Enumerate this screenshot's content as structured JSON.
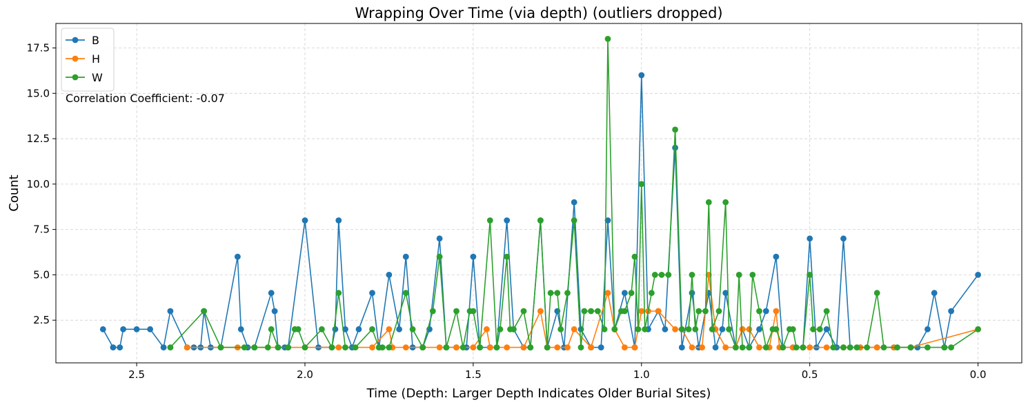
{
  "chart_data": {
    "type": "line",
    "title": "Wrapping Over Time (via depth) (outliers dropped)",
    "xlabel": "Time (Depth: Larger Depth Indicates Older Burial Sites)",
    "ylabel": "Count",
    "xlim": [
      2.74,
      -0.13
    ],
    "ylim": [
      0.15,
      18.85
    ],
    "x_inverted": true,
    "grid": true,
    "legend_position": "top-left",
    "annotation": "Correlation Coefficient: -0.07",
    "xticks": [
      2.5,
      2.0,
      1.5,
      1.0,
      0.5,
      0.0
    ],
    "xtick_labels": [
      "2.5",
      "2.0",
      "1.5",
      "1.0",
      "0.5",
      "0.0"
    ],
    "yticks": [
      2.5,
      5.0,
      7.5,
      10.0,
      12.5,
      15.0,
      17.5
    ],
    "ytick_labels": [
      "2.5",
      "5.0",
      "7.5",
      "10.0",
      "12.5",
      "15.0",
      "17.5"
    ],
    "series": [
      {
        "name": "B",
        "color": "#1f77b4",
        "points": [
          [
            2.6,
            2
          ],
          [
            2.57,
            1
          ],
          [
            2.55,
            1
          ],
          [
            2.54,
            2
          ],
          [
            2.5,
            2
          ],
          [
            2.46,
            2
          ],
          [
            2.42,
            1
          ],
          [
            2.4,
            3
          ],
          [
            2.35,
            1
          ],
          [
            2.33,
            1
          ],
          [
            2.31,
            1
          ],
          [
            2.3,
            3
          ],
          [
            2.28,
            1
          ],
          [
            2.25,
            1
          ],
          [
            2.2,
            6
          ],
          [
            2.19,
            2
          ],
          [
            2.17,
            1
          ],
          [
            2.15,
            1
          ],
          [
            2.1,
            4
          ],
          [
            2.09,
            3
          ],
          [
            2.08,
            1
          ],
          [
            2.06,
            1
          ],
          [
            2.05,
            1
          ],
          [
            2.0,
            8
          ],
          [
            1.96,
            1
          ],
          [
            1.92,
            1
          ],
          [
            1.91,
            2
          ],
          [
            1.9,
            8
          ],
          [
            1.88,
            2
          ],
          [
            1.86,
            1
          ],
          [
            1.84,
            2
          ],
          [
            1.8,
            4
          ],
          [
            1.78,
            1
          ],
          [
            1.75,
            5
          ],
          [
            1.72,
            2
          ],
          [
            1.7,
            6
          ],
          [
            1.68,
            1
          ],
          [
            1.65,
            1
          ],
          [
            1.63,
            2
          ],
          [
            1.6,
            7
          ],
          [
            1.58,
            1
          ],
          [
            1.55,
            1
          ],
          [
            1.52,
            1
          ],
          [
            1.5,
            6
          ],
          [
            1.48,
            1
          ],
          [
            1.45,
            1
          ],
          [
            1.43,
            1
          ],
          [
            1.4,
            8
          ],
          [
            1.38,
            2
          ],
          [
            1.35,
            1
          ],
          [
            1.33,
            1
          ],
          [
            1.3,
            8
          ],
          [
            1.28,
            1
          ],
          [
            1.25,
            3
          ],
          [
            1.23,
            1
          ],
          [
            1.2,
            9
          ],
          [
            1.18,
            2
          ],
          [
            1.15,
            1
          ],
          [
            1.12,
            1
          ],
          [
            1.1,
            8
          ],
          [
            1.08,
            2
          ],
          [
            1.05,
            4
          ],
          [
            1.02,
            1
          ],
          [
            1.0,
            16
          ],
          [
            0.98,
            2
          ],
          [
            0.95,
            3
          ],
          [
            0.93,
            2
          ],
          [
            0.9,
            12
          ],
          [
            0.88,
            1
          ],
          [
            0.85,
            4
          ],
          [
            0.83,
            1
          ],
          [
            0.8,
            4
          ],
          [
            0.78,
            1
          ],
          [
            0.76,
            2
          ],
          [
            0.75,
            4
          ],
          [
            0.72,
            1
          ],
          [
            0.7,
            2
          ],
          [
            0.68,
            1
          ],
          [
            0.65,
            2
          ],
          [
            0.63,
            3
          ],
          [
            0.6,
            6
          ],
          [
            0.58,
            1
          ],
          [
            0.55,
            1
          ],
          [
            0.52,
            1
          ],
          [
            0.5,
            7
          ],
          [
            0.48,
            1
          ],
          [
            0.45,
            2
          ],
          [
            0.42,
            1
          ],
          [
            0.4,
            7
          ],
          [
            0.38,
            1
          ],
          [
            0.35,
            1
          ],
          [
            0.3,
            1
          ],
          [
            0.25,
            1
          ],
          [
            0.2,
            1
          ],
          [
            0.18,
            1
          ],
          [
            0.15,
            2
          ],
          [
            0.13,
            4
          ],
          [
            0.1,
            1
          ],
          [
            0.08,
            3
          ],
          [
            0.0,
            5
          ]
        ]
      },
      {
        "name": "H",
        "color": "#ff7f0e",
        "points": [
          [
            2.35,
            1
          ],
          [
            2.2,
            1
          ],
          [
            2.0,
            1
          ],
          [
            1.9,
            1
          ],
          [
            1.8,
            1
          ],
          [
            1.75,
            2
          ],
          [
            1.74,
            1
          ],
          [
            1.7,
            1
          ],
          [
            1.65,
            1
          ],
          [
            1.6,
            1
          ],
          [
            1.55,
            1
          ],
          [
            1.5,
            1
          ],
          [
            1.46,
            2
          ],
          [
            1.45,
            1
          ],
          [
            1.4,
            1
          ],
          [
            1.35,
            1
          ],
          [
            1.3,
            3
          ],
          [
            1.28,
            1
          ],
          [
            1.25,
            1
          ],
          [
            1.22,
            1
          ],
          [
            1.2,
            2
          ],
          [
            1.15,
            1
          ],
          [
            1.1,
            4
          ],
          [
            1.08,
            2
          ],
          [
            1.05,
            1
          ],
          [
            1.02,
            1
          ],
          [
            1.0,
            3
          ],
          [
            0.98,
            3
          ],
          [
            0.95,
            3
          ],
          [
            0.9,
            2
          ],
          [
            0.88,
            2
          ],
          [
            0.85,
            1
          ],
          [
            0.82,
            1
          ],
          [
            0.8,
            5
          ],
          [
            0.78,
            2
          ],
          [
            0.75,
            1
          ],
          [
            0.72,
            1
          ],
          [
            0.7,
            2
          ],
          [
            0.68,
            2
          ],
          [
            0.65,
            1
          ],
          [
            0.62,
            1
          ],
          [
            0.6,
            3
          ],
          [
            0.59,
            1
          ],
          [
            0.55,
            1
          ],
          [
            0.52,
            1
          ],
          [
            0.5,
            1
          ],
          [
            0.45,
            1
          ],
          [
            0.4,
            1
          ],
          [
            0.35,
            1
          ],
          [
            0.3,
            1
          ],
          [
            0.25,
            1
          ],
          [
            0.2,
            1
          ],
          [
            0.0,
            2
          ]
        ]
      },
      {
        "name": "W",
        "color": "#2ca02c",
        "points": [
          [
            2.4,
            1
          ],
          [
            2.3,
            3
          ],
          [
            2.25,
            1
          ],
          [
            2.18,
            1
          ],
          [
            2.15,
            1
          ],
          [
            2.11,
            1
          ],
          [
            2.1,
            2
          ],
          [
            2.08,
            1
          ],
          [
            2.05,
            1
          ],
          [
            2.03,
            2
          ],
          [
            2.02,
            2
          ],
          [
            2.0,
            1
          ],
          [
            1.95,
            2
          ],
          [
            1.92,
            1
          ],
          [
            1.9,
            4
          ],
          [
            1.88,
            1
          ],
          [
            1.85,
            1
          ],
          [
            1.8,
            2
          ],
          [
            1.78,
            1
          ],
          [
            1.77,
            1
          ],
          [
            1.75,
            1
          ],
          [
            1.7,
            4
          ],
          [
            1.68,
            2
          ],
          [
            1.65,
            1
          ],
          [
            1.62,
            3
          ],
          [
            1.6,
            6
          ],
          [
            1.58,
            1
          ],
          [
            1.55,
            3
          ],
          [
            1.53,
            1
          ],
          [
            1.51,
            3
          ],
          [
            1.5,
            3
          ],
          [
            1.48,
            1
          ],
          [
            1.45,
            8
          ],
          [
            1.43,
            1
          ],
          [
            1.42,
            2
          ],
          [
            1.4,
            6
          ],
          [
            1.39,
            2
          ],
          [
            1.38,
            2
          ],
          [
            1.35,
            3
          ],
          [
            1.33,
            1
          ],
          [
            1.3,
            8
          ],
          [
            1.28,
            1
          ],
          [
            1.27,
            4
          ],
          [
            1.25,
            4
          ],
          [
            1.24,
            2
          ],
          [
            1.22,
            4
          ],
          [
            1.2,
            8
          ],
          [
            1.18,
            1
          ],
          [
            1.17,
            3
          ],
          [
            1.15,
            3
          ],
          [
            1.13,
            3
          ],
          [
            1.11,
            2
          ],
          [
            1.1,
            18
          ],
          [
            1.08,
            2
          ],
          [
            1.06,
            3
          ],
          [
            1.05,
            3
          ],
          [
            1.03,
            4
          ],
          [
            1.02,
            6
          ],
          [
            1.01,
            2
          ],
          [
            1.0,
            10
          ],
          [
            0.99,
            2
          ],
          [
            0.97,
            4
          ],
          [
            0.96,
            5
          ],
          [
            0.94,
            5
          ],
          [
            0.92,
            5
          ],
          [
            0.9,
            13
          ],
          [
            0.88,
            2
          ],
          [
            0.86,
            2
          ],
          [
            0.85,
            5
          ],
          [
            0.84,
            2
          ],
          [
            0.83,
            3
          ],
          [
            0.81,
            3
          ],
          [
            0.8,
            9
          ],
          [
            0.79,
            2
          ],
          [
            0.77,
            3
          ],
          [
            0.75,
            9
          ],
          [
            0.74,
            2
          ],
          [
            0.72,
            1
          ],
          [
            0.71,
            5
          ],
          [
            0.7,
            1
          ],
          [
            0.68,
            1
          ],
          [
            0.67,
            5
          ],
          [
            0.65,
            3
          ],
          [
            0.63,
            1
          ],
          [
            0.61,
            2
          ],
          [
            0.6,
            2
          ],
          [
            0.58,
            1
          ],
          [
            0.56,
            2
          ],
          [
            0.55,
            2
          ],
          [
            0.54,
            1
          ],
          [
            0.52,
            1
          ],
          [
            0.5,
            5
          ],
          [
            0.49,
            2
          ],
          [
            0.47,
            2
          ],
          [
            0.45,
            3
          ],
          [
            0.43,
            1
          ],
          [
            0.4,
            1
          ],
          [
            0.38,
            1
          ],
          [
            0.36,
            1
          ],
          [
            0.33,
            1
          ],
          [
            0.3,
            4
          ],
          [
            0.28,
            1
          ],
          [
            0.24,
            1
          ],
          [
            0.2,
            1
          ],
          [
            0.15,
            1
          ],
          [
            0.1,
            1
          ],
          [
            0.08,
            1
          ],
          [
            0.0,
            2
          ]
        ]
      }
    ]
  }
}
